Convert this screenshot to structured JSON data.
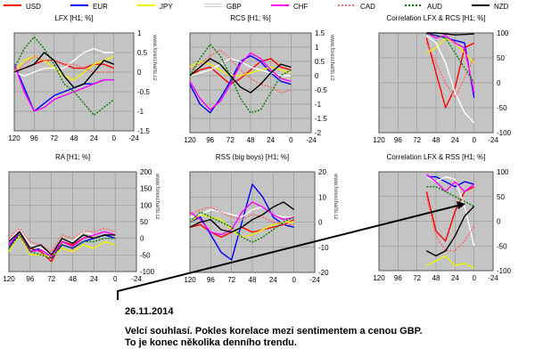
{
  "legend": [
    {
      "name": "USD",
      "color": "#ff0000",
      "dash": "solid"
    },
    {
      "name": "EUR",
      "color": "#0000ff",
      "dash": "solid"
    },
    {
      "name": "JPY",
      "color": "#f0f000",
      "dash": "solid"
    },
    {
      "name": "GBP",
      "color": "#ffffff",
      "dash": "solid"
    },
    {
      "name": "CHF",
      "color": "#ff00ff",
      "dash": "solid"
    },
    {
      "name": "CAD",
      "color": "#ff6666",
      "dash": "dotted"
    },
    {
      "name": "AUD",
      "color": "#008000",
      "dash": "dotted"
    },
    {
      "name": "NZD",
      "color": "#000000",
      "dash": "solid"
    }
  ],
  "watermark": "www.forexcharts.cz",
  "annotation": {
    "date": "26.11.2014",
    "line1": "Velcí souhlasí. Pokles korelace mezi sentimentem a cenou GBP.",
    "line2": "To je konec několika denního trendu."
  },
  "chart_data": [
    {
      "type": "line",
      "title": "LFX [H1; %]",
      "x": [
        120,
        108,
        96,
        84,
        72,
        60,
        48,
        36,
        24,
        12,
        0
      ],
      "xticks": [
        120,
        96,
        72,
        48,
        24,
        0,
        -24
      ],
      "xlim": [
        120,
        -24
      ],
      "yticks": [
        1,
        0.5,
        0,
        -0.5,
        -1,
        -1.5
      ],
      "ylim": [
        -1.5,
        1
      ],
      "grid": true,
      "show_watermark": true,
      "series": [
        {
          "name": "USD",
          "values": [
            0,
            0.1,
            0.2,
            0.3,
            0.3,
            0.2,
            0.1,
            0.1,
            0.2,
            0.2,
            0.1
          ]
        },
        {
          "name": "EUR",
          "values": [
            0.2,
            -0.4,
            -1,
            -0.8,
            -0.6,
            -0.5,
            -0.4,
            -0.3,
            -0.3,
            -0.2,
            -0.2
          ]
        },
        {
          "name": "JPY",
          "values": [
            0,
            0.3,
            0.4,
            0.3,
            0.1,
            -0.1,
            -0.2,
            0,
            0.2,
            0.3,
            0.4
          ]
        },
        {
          "name": "GBP",
          "values": [
            0,
            -0.1,
            0,
            0.1,
            0.1,
            0.1,
            0.3,
            0.5,
            0.6,
            0.5,
            0.5
          ]
        },
        {
          "name": "CHF",
          "values": [
            0.2,
            -0.5,
            -1,
            -0.9,
            -0.7,
            -0.6,
            -0.5,
            -0.4,
            -0.3,
            -0.2,
            -0.2
          ]
        },
        {
          "name": "CAD",
          "values": [
            0,
            0.2,
            0.4,
            0.3,
            0.3,
            0.2,
            0.2,
            0.1,
            0,
            0,
            0
          ]
        },
        {
          "name": "AUD",
          "values": [
            0.1,
            0.6,
            0.9,
            0.6,
            0.2,
            -0.3,
            -0.5,
            -0.8,
            -1.1,
            -0.9,
            -0.7
          ]
        },
        {
          "name": "NZD",
          "values": [
            0,
            0.1,
            0.2,
            0.5,
            0.3,
            -0.1,
            -0.4,
            -0.3,
            0,
            0.3,
            0.2
          ]
        }
      ]
    },
    {
      "type": "line",
      "title": "RCS [H1; %]",
      "x": [
        120,
        108,
        96,
        84,
        72,
        60,
        48,
        36,
        24,
        12,
        0
      ],
      "xticks": [
        120,
        96,
        72,
        48,
        24,
        0,
        -24
      ],
      "xlim": [
        120,
        -24
      ],
      "yticks": [
        1.5,
        1,
        0.5,
        0,
        -0.5,
        -1,
        -1.5,
        -2
      ],
      "ylim": [
        -2,
        1.5
      ],
      "grid": true,
      "show_watermark": true,
      "series": [
        {
          "name": "USD",
          "values": [
            0,
            0.2,
            0.3,
            0,
            -0.3,
            -0.1,
            0.2,
            0.5,
            0.6,
            0.3,
            0.2
          ]
        },
        {
          "name": "EUR",
          "values": [
            -0.3,
            -1,
            -1.3,
            -0.8,
            -0.2,
            0.5,
            0.7,
            0.5,
            0.1,
            -0.2,
            -0.3
          ]
        },
        {
          "name": "JPY",
          "values": [
            0.3,
            0.5,
            0.4,
            0.2,
            0,
            0,
            0.1,
            0.2,
            0.3,
            0.2,
            0.1
          ]
        },
        {
          "name": "GBP",
          "values": [
            0,
            0.1,
            0.2,
            0.4,
            0.6,
            0.5,
            0.3,
            0.2,
            0.1,
            0,
            0
          ]
        },
        {
          "name": "CHF",
          "values": [
            -0.2,
            -0.8,
            -1.2,
            -0.9,
            -0.3,
            0.4,
            0.8,
            0.6,
            0.2,
            -0.1,
            -0.2
          ]
        },
        {
          "name": "CAD",
          "values": [
            0.2,
            0.4,
            0.7,
            0.9,
            0.6,
            0.2,
            -0.1,
            -0.3,
            -0.4,
            -0.6,
            -0.5
          ]
        },
        {
          "name": "AUD",
          "values": [
            0,
            0.6,
            1.1,
            0.7,
            0,
            -0.8,
            -1.3,
            -1.2,
            -0.6,
            0,
            0.2
          ]
        },
        {
          "name": "NZD",
          "values": [
            0,
            0.3,
            0.6,
            0.4,
            0,
            -0.4,
            -0.6,
            -0.3,
            0.1,
            0.4,
            0.3
          ]
        }
      ]
    },
    {
      "type": "line",
      "title": "Correlation LFX & RCS [H1; %]",
      "x": [
        120,
        108,
        96,
        84,
        72,
        60,
        48,
        36,
        24,
        12,
        0
      ],
      "xticks": [
        120,
        96,
        72,
        48,
        24,
        0,
        -24
      ],
      "xlim": [
        120,
        -24
      ],
      "yticks": [
        100,
        50,
        0,
        -50,
        -100
      ],
      "ylim": [
        -100,
        100
      ],
      "grid": true,
      "show_watermark": false,
      "series": [
        {
          "name": "USD",
          "values": [
            null,
            null,
            null,
            null,
            null,
            90,
            20,
            -50,
            -10,
            70,
            80
          ]
        },
        {
          "name": "EUR",
          "values": [
            null,
            null,
            null,
            null,
            null,
            100,
            95,
            90,
            85,
            80,
            -30
          ]
        },
        {
          "name": "JPY",
          "values": [
            null,
            null,
            null,
            null,
            null,
            60,
            70,
            90,
            80,
            60,
            40
          ]
        },
        {
          "name": "GBP",
          "values": [
            null,
            null,
            null,
            null,
            null,
            95,
            80,
            40,
            -20,
            -60,
            -80
          ]
        },
        {
          "name": "CHF",
          "values": [
            null,
            null,
            null,
            null,
            null,
            100,
            90,
            95,
            80,
            70,
            -20
          ]
        },
        {
          "name": "CAD",
          "values": [
            null,
            null,
            null,
            null,
            null,
            80,
            40,
            0,
            -30,
            10,
            50
          ]
        },
        {
          "name": "AUD",
          "values": [
            null,
            null,
            null,
            null,
            null,
            98,
            95,
            90,
            60,
            30,
            0
          ]
        },
        {
          "name": "NZD",
          "values": [
            null,
            null,
            null,
            null,
            null,
            100,
            100,
            98,
            96,
            97,
            98
          ]
        }
      ]
    },
    {
      "type": "line",
      "title": "RA  [H1; %]",
      "x": [
        120,
        108,
        96,
        84,
        72,
        60,
        48,
        36,
        24,
        12,
        0
      ],
      "xticks": [
        120,
        96,
        72,
        48,
        24,
        0,
        -24
      ],
      "xlim": [
        120,
        -24
      ],
      "yticks": [
        200,
        150,
        100,
        50,
        0,
        -50,
        -100
      ],
      "ylim": [
        -100,
        200
      ],
      "grid": true,
      "show_watermark": true,
      "series": [
        {
          "name": "USD",
          "values": [
            -20,
            10,
            -30,
            -40,
            -70,
            -10,
            -20,
            0,
            10,
            20,
            10
          ]
        },
        {
          "name": "EUR",
          "values": [
            -30,
            20,
            -40,
            -30,
            -60,
            -20,
            -30,
            -10,
            0,
            10,
            0
          ]
        },
        {
          "name": "JPY",
          "values": [
            -40,
            10,
            -50,
            -50,
            -55,
            -30,
            -40,
            -20,
            -30,
            -10,
            -20
          ]
        },
        {
          "name": "GBP",
          "values": [
            -10,
            30,
            -20,
            -30,
            -50,
            0,
            -10,
            20,
            10,
            20,
            10
          ]
        },
        {
          "name": "CHF",
          "values": [
            -20,
            20,
            -40,
            -35,
            -55,
            -10,
            -25,
            0,
            10,
            20,
            10
          ]
        },
        {
          "name": "CAD",
          "values": [
            0,
            30,
            -10,
            -20,
            -40,
            10,
            0,
            20,
            20,
            30,
            20
          ]
        },
        {
          "name": "AUD",
          "values": [
            -30,
            10,
            -40,
            -50,
            -60,
            -20,
            -30,
            -10,
            -10,
            0,
            0
          ]
        },
        {
          "name": "NZD",
          "values": [
            -10,
            20,
            -30,
            -20,
            -50,
            0,
            -15,
            10,
            0,
            10,
            10
          ]
        }
      ]
    },
    {
      "type": "line",
      "title": "RSS (big boys) [H1; %]",
      "x": [
        120,
        108,
        96,
        84,
        72,
        60,
        48,
        36,
        24,
        12,
        0
      ],
      "xticks": [
        120,
        96,
        72,
        48,
        24,
        0,
        -24
      ],
      "xlim": [
        120,
        -24
      ],
      "yticks": [
        20,
        10,
        0,
        -10,
        -20
      ],
      "ylim": [
        -20,
        20
      ],
      "grid": true,
      "show_watermark": true,
      "series": [
        {
          "name": "USD",
          "values": [
            -2,
            -1,
            -4,
            -6,
            -4,
            -2,
            -4,
            -3,
            -2,
            -1,
            1
          ]
        },
        {
          "name": "EUR",
          "values": [
            0,
            2,
            -5,
            -12,
            -15,
            0,
            15,
            10,
            2,
            -1,
            -2
          ]
        },
        {
          "name": "JPY",
          "values": [
            0,
            3,
            2,
            1,
            -3,
            -6,
            -5,
            -3,
            -1,
            0,
            0
          ]
        },
        {
          "name": "GBP",
          "values": [
            2,
            3,
            5,
            4,
            3,
            2,
            5,
            6,
            3,
            2,
            2
          ]
        },
        {
          "name": "CHF",
          "values": [
            4,
            1,
            -4,
            -5,
            -3,
            4,
            8,
            6,
            3,
            1,
            2
          ]
        },
        {
          "name": "CAD",
          "values": [
            3,
            5,
            6,
            4,
            2,
            1,
            3,
            2,
            0,
            -1,
            -1
          ]
        },
        {
          "name": "AUD",
          "values": [
            0,
            4,
            2,
            0,
            -2,
            -6,
            -8,
            -6,
            -3,
            0,
            2
          ]
        },
        {
          "name": "NZD",
          "values": [
            -2,
            0,
            1,
            -3,
            -4,
            -2,
            1,
            3,
            6,
            8,
            5
          ]
        }
      ]
    },
    {
      "type": "line",
      "title": "Correlation LFX & RSS [H1; %]",
      "x": [
        120,
        108,
        96,
        84,
        72,
        60,
        48,
        36,
        24,
        12,
        0
      ],
      "xticks": [
        120,
        96,
        72,
        48,
        24,
        0,
        -24
      ],
      "xlim": [
        120,
        -24
      ],
      "yticks": [
        100,
        50,
        0,
        -50,
        -100
      ],
      "ylim": [
        -100,
        100
      ],
      "grid": true,
      "show_watermark": false,
      "series": [
        {
          "name": "USD",
          "values": [
            null,
            null,
            null,
            null,
            null,
            60,
            -20,
            -40,
            20,
            60,
            70
          ]
        },
        {
          "name": "EUR",
          "values": [
            null,
            null,
            null,
            null,
            null,
            90,
            90,
            80,
            70,
            80,
            75
          ]
        },
        {
          "name": "JPY",
          "values": [
            null,
            null,
            null,
            null,
            null,
            -90,
            -80,
            -70,
            -90,
            -85,
            -95
          ]
        },
        {
          "name": "GBP",
          "values": [
            null,
            null,
            null,
            null,
            null,
            90,
            80,
            90,
            85,
            30,
            -50
          ]
        },
        {
          "name": "CHF",
          "values": [
            null,
            null,
            null,
            null,
            null,
            95,
            80,
            60,
            80,
            60,
            75
          ]
        },
        {
          "name": "CAD",
          "values": [
            null,
            null,
            null,
            null,
            null,
            50,
            -30,
            -60,
            -60,
            -40,
            -10
          ]
        },
        {
          "name": "AUD",
          "values": [
            null,
            null,
            null,
            null,
            null,
            70,
            70,
            60,
            50,
            40,
            30
          ]
        },
        {
          "name": "NZD",
          "values": [
            null,
            null,
            null,
            null,
            null,
            -60,
            -70,
            -60,
            -30,
            10,
            30
          ]
        }
      ]
    }
  ]
}
